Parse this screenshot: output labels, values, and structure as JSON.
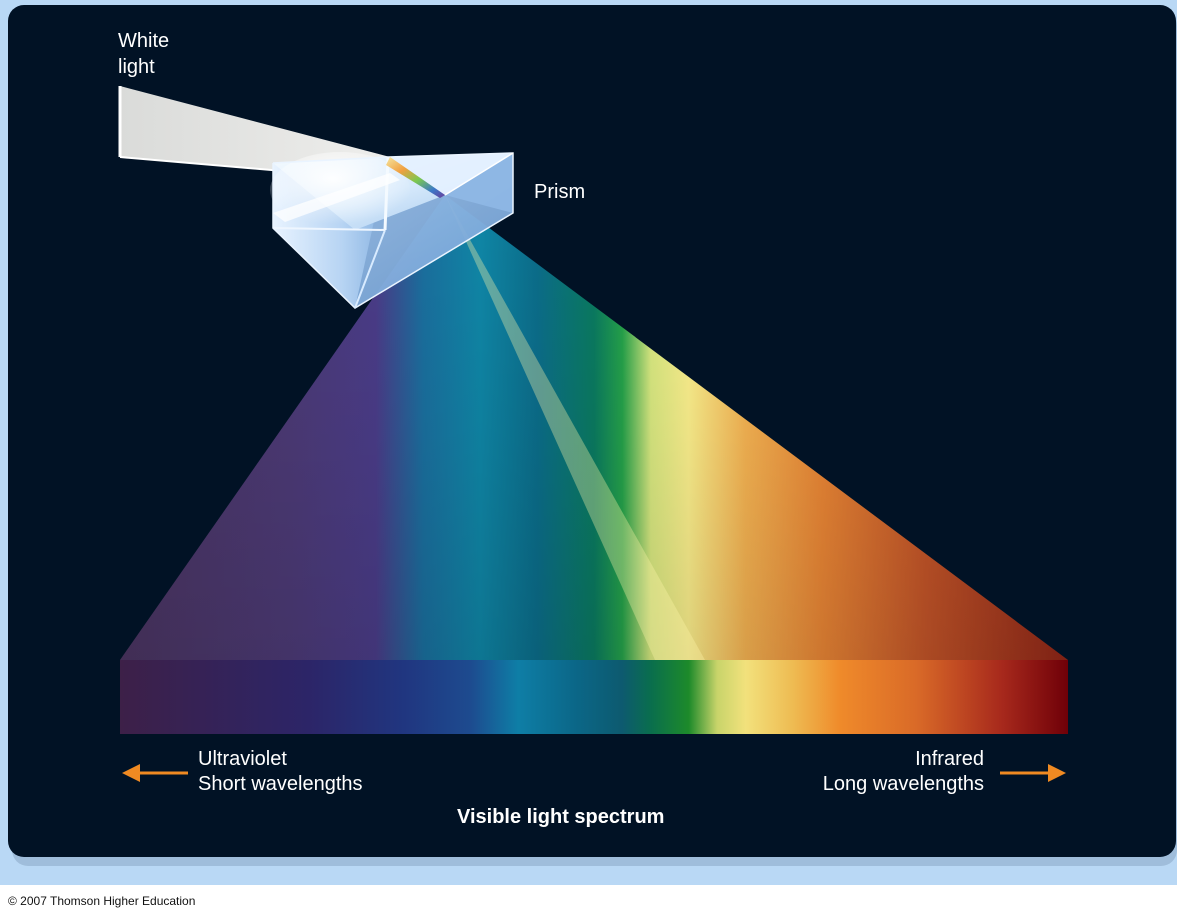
{
  "labels": {
    "white_light_line1": "White",
    "white_light_line2": "light",
    "prism": "Prism",
    "ultraviolet": "Ultraviolet",
    "short_wavelengths": "Short wavelengths",
    "infrared": "Infrared",
    "long_wavelengths": "Long wavelengths",
    "spectrum_title": "Visible light spectrum"
  },
  "copyright": "© 2007 Thomson Higher Education",
  "colors": {
    "page_border": "#b9d8f5",
    "panel_background": "#011225",
    "arrow": "#f08a22",
    "white_beam": "#e0e1e0",
    "spectrum_stops": [
      "#3f2350",
      "#2e2a6e",
      "#1a3f86",
      "#0d80a8",
      "#0c5f7a",
      "#0a7a3a",
      "#f3e97a",
      "#f09540",
      "#e76b1d",
      "#a0201a",
      "#7a0008"
    ]
  }
}
